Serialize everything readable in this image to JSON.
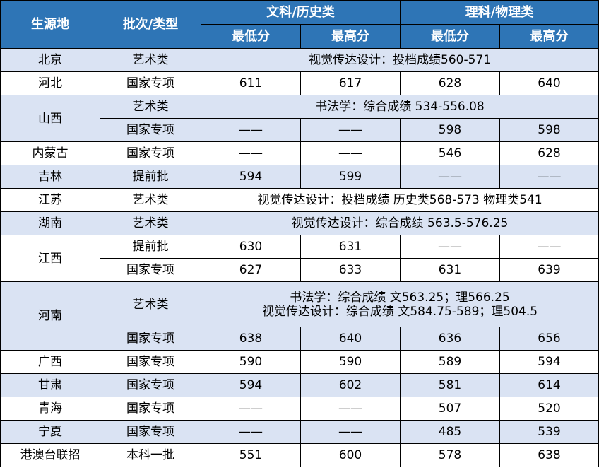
{
  "header": {
    "province": "生源地",
    "batch": "批次/类型",
    "arts": "文科/历史类",
    "science": "理科/物理类",
    "arts_min": "最低分",
    "arts_max": "最高分",
    "sci_min": "最低分",
    "sci_max": "最高分"
  },
  "rows": {
    "beijing": {
      "province": "北京",
      "batch": "艺术类",
      "merged": "视觉传达设计：投档成绩560-571"
    },
    "hebei": {
      "province": "河北",
      "batch": "国家专项",
      "a_min": "611",
      "a_max": "617",
      "s_min": "628",
      "s_max": "640"
    },
    "shanxi": {
      "province": "山西",
      "b1": "艺术类",
      "merged": "书法学：综合成绩 534-556.08",
      "b2": "国家专项",
      "a_min": "——",
      "a_max": "——",
      "s_min": "598",
      "s_max": "598"
    },
    "neimenggu": {
      "province": "内蒙古",
      "batch": "国家专项",
      "a_min": "——",
      "a_max": "——",
      "s_min": "546",
      "s_max": "628"
    },
    "jilin": {
      "province": "吉林",
      "batch": "提前批",
      "a_min": "594",
      "a_max": "599",
      "s_min": "——",
      "s_max": "——"
    },
    "jiangsu": {
      "province": "江苏",
      "batch": "艺术类",
      "merged": "视觉传达设计：投档成绩 历史类568-573 物理类541"
    },
    "hunan": {
      "province": "湖南",
      "batch": "艺术类",
      "merged": "视觉传达设计：综合成绩 563.5-576.25"
    },
    "jiangxi": {
      "province": "江西",
      "b1": "提前批",
      "r1_a_min": "630",
      "r1_a_max": "631",
      "r1_s_min": "——",
      "r1_s_max": "——",
      "b2": "国家专项",
      "r2_a_min": "627",
      "r2_a_max": "633",
      "r2_s_min": "631",
      "r2_s_max": "639"
    },
    "henan": {
      "province": "河南",
      "b1": "艺术类",
      "merged_line1": "书法学：综合成绩 文563.25；理566.25",
      "merged_line2": "视觉传达设计：综合成绩 文584.75-589；理504.5",
      "b2": "国家专项",
      "a_min": "638",
      "a_max": "640",
      "s_min": "636",
      "s_max": "656"
    },
    "guangxi": {
      "province": "广西",
      "batch": "国家专项",
      "a_min": "590",
      "a_max": "590",
      "s_min": "589",
      "s_max": "594"
    },
    "gansu": {
      "province": "甘肃",
      "batch": "国家专项",
      "a_min": "594",
      "a_max": "602",
      "s_min": "581",
      "s_max": "614"
    },
    "qinghai": {
      "province": "青海",
      "batch": "国家专项",
      "a_min": "——",
      "a_max": "——",
      "s_min": "507",
      "s_max": "520"
    },
    "ningxia": {
      "province": "宁夏",
      "batch": "国家专项",
      "a_min": "——",
      "a_max": "——",
      "s_min": "485",
      "s_max": "539"
    },
    "hmt": {
      "province": "港澳台联招",
      "batch": "本科一批",
      "a_min": "551",
      "a_max": "600",
      "s_min": "578",
      "s_max": "638"
    }
  }
}
